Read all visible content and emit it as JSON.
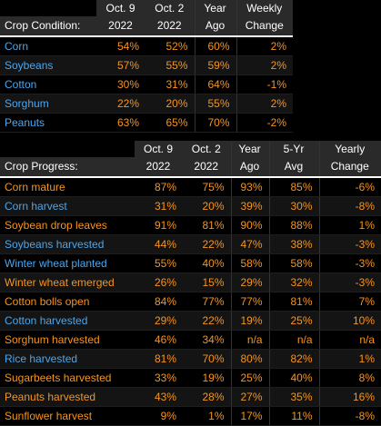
{
  "condition": {
    "header_top": [
      "Oct. 9",
      "Oct. 2",
      "Year",
      "Weekly"
    ],
    "header_bottom": [
      "Crop Condition:",
      "2022",
      "2022",
      "Ago",
      "Change"
    ],
    "rows": [
      {
        "label": "Corn",
        "v": [
          "54%",
          "52%",
          "60%",
          "2%"
        ]
      },
      {
        "label": "Soybeans",
        "v": [
          "57%",
          "55%",
          "59%",
          "2%"
        ]
      },
      {
        "label": "Cotton",
        "v": [
          "30%",
          "31%",
          "64%",
          "-1%"
        ]
      },
      {
        "label": "Sorghum",
        "v": [
          "22%",
          "20%",
          "55%",
          "2%"
        ]
      },
      {
        "label": "Peanuts",
        "v": [
          "63%",
          "65%",
          "70%",
          "-2%"
        ]
      }
    ]
  },
  "progress": {
    "header_top": [
      "Oct. 9",
      "Oct. 2",
      "Year",
      "5-Yr",
      "Yearly"
    ],
    "header_bottom": [
      "Crop Progress:",
      "2022",
      "2022",
      "Ago",
      "Avg",
      "Change"
    ],
    "rows": [
      {
        "label": "Corn mature",
        "color": "orange",
        "v": [
          "87%",
          "75%",
          "93%",
          "85%",
          "-6%"
        ]
      },
      {
        "label": "Corn harvest",
        "color": "blue",
        "v": [
          "31%",
          "20%",
          "39%",
          "30%",
          "-8%"
        ]
      },
      {
        "label": "Soybean drop leaves",
        "color": "orange",
        "v": [
          "91%",
          "81%",
          "90%",
          "88%",
          "1%"
        ]
      },
      {
        "label": "Soybeans harvested",
        "color": "blue",
        "v": [
          "44%",
          "22%",
          "47%",
          "38%",
          "-3%"
        ]
      },
      {
        "label": "Winter wheat planted",
        "color": "blue",
        "v": [
          "55%",
          "40%",
          "58%",
          "58%",
          "-3%"
        ]
      },
      {
        "label": "Winter wheat emerged",
        "color": "orange",
        "v": [
          "26%",
          "15%",
          "29%",
          "32%",
          "-3%"
        ]
      },
      {
        "label": "Cotton bolls open",
        "color": "orange",
        "v": [
          "84%",
          "77%",
          "77%",
          "81%",
          "7%"
        ]
      },
      {
        "label": "Cotton harvested",
        "color": "blue",
        "v": [
          "29%",
          "22%",
          "19%",
          "25%",
          "10%"
        ]
      },
      {
        "label": "Sorghum harvested",
        "color": "orange",
        "v": [
          "46%",
          "34%",
          "n/a",
          "n/a",
          "n/a"
        ]
      },
      {
        "label": "Rice harvested",
        "color": "blue",
        "v": [
          "81%",
          "70%",
          "80%",
          "82%",
          "1%"
        ]
      },
      {
        "label": "Sugarbeets harvested",
        "color": "orange",
        "v": [
          "33%",
          "19%",
          "25%",
          "40%",
          "8%"
        ]
      },
      {
        "label": "Peanuts harvested",
        "color": "orange",
        "v": [
          "43%",
          "28%",
          "27%",
          "35%",
          "16%"
        ]
      },
      {
        "label": "Sunflower harvest",
        "color": "orange",
        "v": [
          "9%",
          "1%",
          "17%",
          "11%",
          "-8%"
        ]
      }
    ]
  },
  "colors": {
    "label_blue": "#4aa6ee",
    "value_orange": "#f7941d",
    "header_bg": "#2a2a2a"
  }
}
